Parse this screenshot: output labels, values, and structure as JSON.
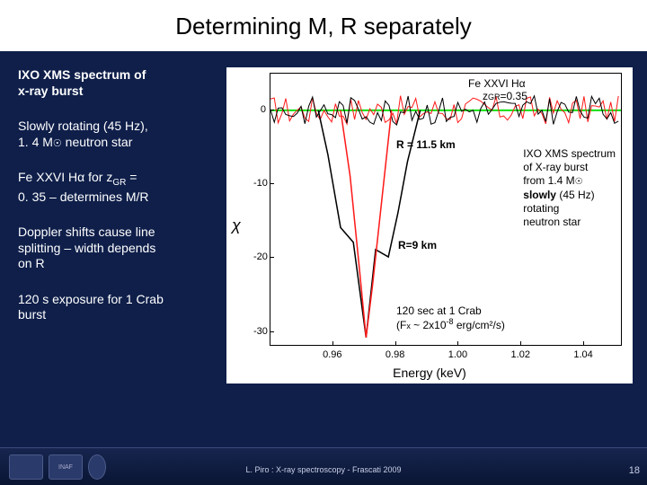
{
  "title": "Determining M, R separately",
  "bullets": {
    "b1a": "IXO XMS spectrum of",
    "b1b": "x-ray burst",
    "b2a": "Slowly rotating (45 Hz),",
    "b2b_pre": "1. 4 M",
    "b2b_sym": "☉",
    "b2b_post": " neutron star",
    "b3a_pre": "Fe XXVI H",
    "b3a_alpha": "α",
    "b3a_mid": " for z",
    "b3a_sub": "GR",
    "b3a_post": " =",
    "b3b": "0. 35 – determines M/R",
    "b4a": "Doppler shifts cause line",
    "b4b": "splitting – width depends",
    "b4c": "on R",
    "b5a": "120 s exposure for 1 Crab",
    "b5b": "burst"
  },
  "chart": {
    "type": "line",
    "background_color": "#ffffff",
    "series_colors": {
      "r9": "#ff1a1a",
      "r11_5": "#000000"
    },
    "zero_line_color": "#00e000",
    "xlim": [
      0.94,
      1.05
    ],
    "ylim": [
      -32,
      5
    ],
    "xtick_vals": [
      0.96,
      0.98,
      1.0,
      1.02,
      1.04
    ],
    "ytick_vals": [
      0,
      -10,
      -20,
      -30
    ],
    "xlabel": "Energy (keV)",
    "ylabel": "χ",
    "ann_top1": "Fe XXVI Hα",
    "ann_top2_pre": "z",
    "ann_top2_sub": "GR",
    "ann_top2_post": "=0.35",
    "ann_r11_5": "R = 11.5 km",
    "ann_r9": "R=9 km",
    "ann_right1": "IXO XMS spectrum",
    "ann_right2": "of X-ray burst",
    "ann_right3_pre": "from 1.4 M",
    "ann_right3_sym": "☉",
    "ann_right4": "slowly",
    "ann_right4b": " (45 Hz)",
    "ann_right5": "rotating",
    "ann_right6": "neutron star",
    "ann_bottom1": "120 sec at 1 Crab",
    "ann_bottom2_pre": "(F",
    "ann_bottom2_sub": "x",
    "ann_bottom2_mid": " ~ 2x10",
    "ann_bottom2_sup": "-8",
    "ann_bottom2_post": " erg/cm²/s)",
    "dip_black": {
      "points": [
        [
          0.955,
          0
        ],
        [
          0.958,
          -6
        ],
        [
          0.962,
          -16
        ],
        [
          0.966,
          -18
        ],
        [
          0.97,
          -31
        ],
        [
          0.973,
          -19
        ],
        [
          0.977,
          -20
        ],
        [
          0.98,
          -14
        ],
        [
          0.983,
          -7
        ],
        [
          0.987,
          0
        ]
      ]
    },
    "dip_red": {
      "points": [
        [
          0.962,
          0
        ],
        [
          0.965,
          -9
        ],
        [
          0.968,
          -22
        ],
        [
          0.97,
          -31
        ],
        [
          0.972,
          -24
        ],
        [
          0.975,
          -12
        ],
        [
          0.978,
          0
        ]
      ]
    },
    "noise_amplitude": 2,
    "line_width_black": 1.5,
    "line_width_red": 1.5
  },
  "footer": {
    "caption": "L. Piro : X-ray spectroscopy  -  Frascati 2009",
    "page": "18",
    "logos": [
      "",
      "INAF",
      ""
    ]
  }
}
